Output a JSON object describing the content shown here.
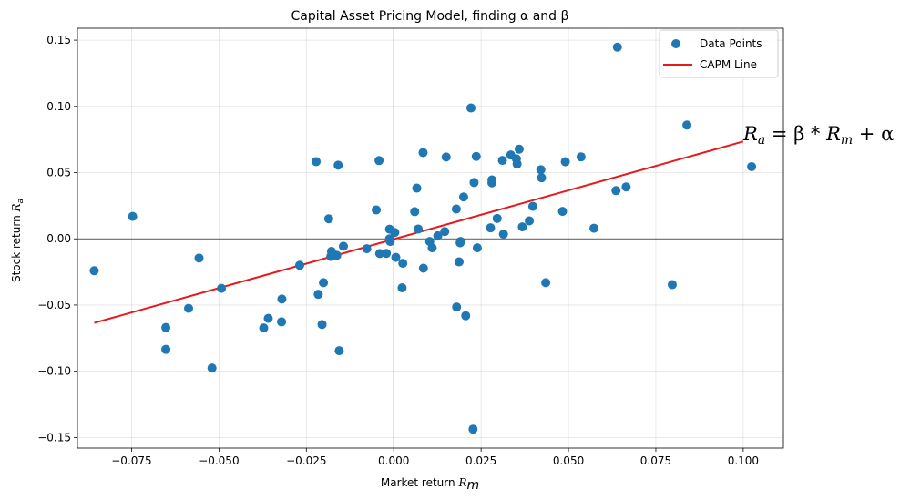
{
  "chart_data": {
    "type": "scatter",
    "title": "Capital Asset Pricing Model, finding α and β",
    "xlabel": "Market return",
    "xlabel_sub": "m",
    "ylabel": "Stock return",
    "ylabel_sub": "a",
    "xlim": [
      -0.0905,
      0.1115
    ],
    "ylim": [
      -0.158,
      0.159
    ],
    "xticks": [
      -0.075,
      -0.05,
      -0.025,
      0.0,
      0.025,
      0.05,
      0.075,
      0.1
    ],
    "xtick_labels": [
      "−0.075",
      "−0.050",
      "−0.025",
      "0.000",
      "0.025",
      "0.050",
      "0.075",
      "0.100"
    ],
    "yticks": [
      -0.15,
      -0.1,
      -0.05,
      0.0,
      0.05,
      0.1,
      0.15
    ],
    "ytick_labels": [
      "−0.15",
      "−0.10",
      "−0.05",
      "0.00",
      "0.05",
      "0.10",
      "0.15"
    ],
    "grid": true,
    "legend_position": "top-right",
    "series": [
      {
        "name": "Data Points",
        "kind": "scatter",
        "color": "#1f77b4",
        "points": [
          [
            -0.0857,
            -0.0241
          ],
          [
            -0.0747,
            0.0169
          ],
          [
            -0.0652,
            -0.067
          ],
          [
            -0.0652,
            -0.0835
          ],
          [
            -0.0587,
            -0.0525
          ],
          [
            -0.0557,
            -0.0145
          ],
          [
            -0.052,
            -0.0976
          ],
          [
            -0.0493,
            -0.0374
          ],
          [
            -0.0372,
            -0.0673
          ],
          [
            -0.0359,
            -0.0601
          ],
          [
            -0.0321,
            -0.0627
          ],
          [
            -0.032,
            -0.0455
          ],
          [
            -0.0269,
            -0.02
          ],
          [
            -0.0222,
            0.0583
          ],
          [
            -0.0216,
            -0.0419
          ],
          [
            -0.0205,
            -0.0647
          ],
          [
            -0.0201,
            -0.0331
          ],
          [
            -0.0186,
            0.0151
          ],
          [
            -0.018,
            -0.0133
          ],
          [
            -0.0178,
            -0.0095
          ],
          [
            -0.0163,
            -0.0125
          ],
          [
            -0.0159,
            0.0556
          ],
          [
            -0.0156,
            -0.0845
          ],
          [
            -0.0144,
            -0.0056
          ],
          [
            -0.0077,
            -0.0075
          ],
          [
            -0.005,
            0.0218
          ],
          [
            -0.0042,
            0.0591
          ],
          [
            -0.004,
            -0.0111
          ],
          [
            -0.0021,
            -0.011
          ],
          [
            -0.0012,
            0.0073
          ],
          [
            -0.0012,
            0.0
          ],
          [
            -0.001,
            -0.002
          ],
          [
            0.0003,
            0.0048
          ],
          [
            0.0006,
            -0.014
          ],
          [
            0.0024,
            -0.037
          ],
          [
            0.0026,
            -0.0185
          ],
          [
            0.006,
            0.0205
          ],
          [
            0.0066,
            0.0383
          ],
          [
            0.007,
            0.0074
          ],
          [
            0.0084,
            0.0651
          ],
          [
            0.0085,
            -0.0222
          ],
          [
            0.0103,
            -0.002
          ],
          [
            0.011,
            -0.0068
          ],
          [
            0.0126,
            0.0023
          ],
          [
            0.0146,
            0.0055
          ],
          [
            0.015,
            0.0618
          ],
          [
            0.0179,
            0.0225
          ],
          [
            0.018,
            -0.0515
          ],
          [
            0.0187,
            -0.0174
          ],
          [
            0.019,
            -0.003
          ],
          [
            0.0191,
            -0.002
          ],
          [
            0.02,
            0.0316
          ],
          [
            0.0206,
            -0.0581
          ],
          [
            0.0221,
            0.0988
          ],
          [
            0.0227,
            -0.1437
          ],
          [
            0.023,
            0.0425
          ],
          [
            0.0236,
            0.0622
          ],
          [
            0.0239,
            -0.0068
          ],
          [
            0.0277,
            0.0083
          ],
          [
            0.0281,
            0.0423
          ],
          [
            0.0281,
            0.0445
          ],
          [
            0.0296,
            0.0154
          ],
          [
            0.0311,
            0.0592
          ],
          [
            0.0314,
            0.0035
          ],
          [
            0.0335,
            0.0633
          ],
          [
            0.0351,
            0.0604
          ],
          [
            0.0353,
            0.0565
          ],
          [
            0.0359,
            0.0677
          ],
          [
            0.0368,
            0.009
          ],
          [
            0.0388,
            0.0136
          ],
          [
            0.0398,
            0.0245
          ],
          [
            0.0421,
            0.0522
          ],
          [
            0.0423,
            0.0461
          ],
          [
            0.0435,
            -0.0331
          ],
          [
            0.0483,
            0.0207
          ],
          [
            0.0491,
            0.0582
          ],
          [
            0.0536,
            0.0619
          ],
          [
            0.0573,
            0.008
          ],
          [
            0.0636,
            0.0364
          ],
          [
            0.064,
            0.1447
          ],
          [
            0.0665,
            0.0392
          ],
          [
            0.0797,
            -0.0346
          ],
          [
            0.0839,
            0.0859
          ],
          [
            0.1024,
            0.0545
          ]
        ]
      },
      {
        "name": "CAPM Line",
        "kind": "line",
        "color": "#e41a1c",
        "x": [
          -0.0857,
          0.1
        ],
        "y": [
          -0.0635,
          0.0735
        ]
      }
    ],
    "annotation": {
      "x": 0.1,
      "y": 0.0735,
      "text_parts": [
        "R",
        "a",
        " = β * ",
        "R",
        "m",
        " + α"
      ]
    }
  }
}
